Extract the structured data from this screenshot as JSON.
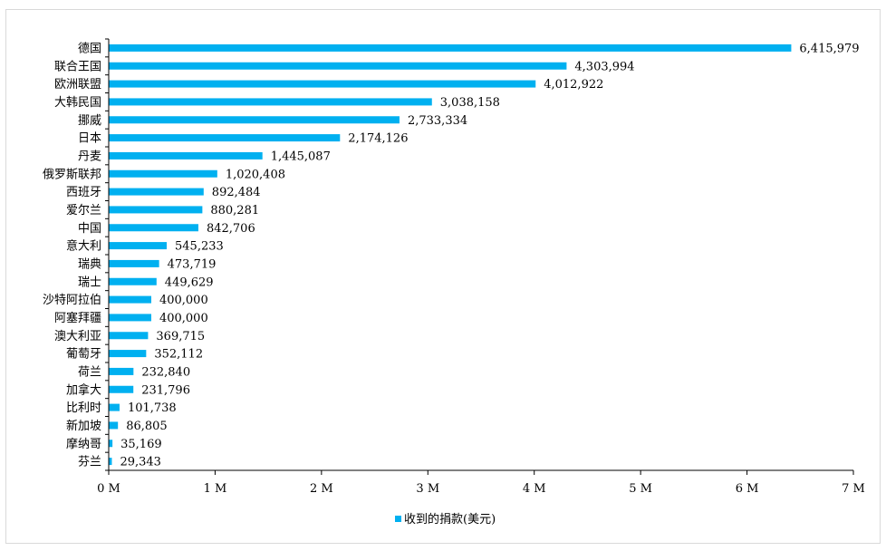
{
  "chart_data": {
    "type": "bar",
    "orientation": "horizontal",
    "categories": [
      "德国",
      "联合王国",
      "欧洲联盟",
      "大韩民国",
      "挪威",
      "日本",
      "丹麦",
      "俄罗斯联邦",
      "西班牙",
      "爱尔兰",
      "中国",
      "意大利",
      "瑞典",
      "瑞士",
      "沙特阿拉伯",
      "阿塞拜疆",
      "澳大利亚",
      "葡萄牙",
      "荷兰",
      "加拿大",
      "比利时",
      "新加坡",
      "摩纳哥",
      "芬兰"
    ],
    "series": [
      {
        "name": "收到的捐款(美元)",
        "values": [
          6415979,
          4303994,
          4012922,
          3038158,
          2733334,
          2174126,
          1445087,
          1020408,
          892484,
          880281,
          842706,
          545233,
          473719,
          449629,
          400000,
          400000,
          369715,
          352112,
          232840,
          231796,
          101738,
          86805,
          35169,
          29343
        ],
        "value_labels": [
          "6,415,979",
          "4,303,994",
          "4,012,922",
          "3,038,158",
          "2,733,334",
          "2,174,126",
          "1,445,087",
          "1,020,408",
          "892,484",
          "880,281",
          "842,706",
          "545,233",
          "473,719",
          "449,629",
          "400,000",
          "400,000",
          "369,715",
          "352,112",
          "232,840",
          "231,796",
          "101,738",
          "86,805",
          "35,169",
          "29,343"
        ],
        "color": "#00b0f0"
      }
    ],
    "xlim": [
      0,
      7000000
    ],
    "x_ticks": [
      0,
      1000000,
      2000000,
      3000000,
      4000000,
      5000000,
      6000000,
      7000000
    ],
    "x_tick_labels": [
      "0 M",
      "1 M",
      "2 M",
      "3 M",
      "4 M",
      "5 M",
      "6 M",
      "7 M"
    ],
    "grid": false,
    "legend_position": "bottom",
    "title": "",
    "xlabel": "",
    "ylabel": ""
  }
}
